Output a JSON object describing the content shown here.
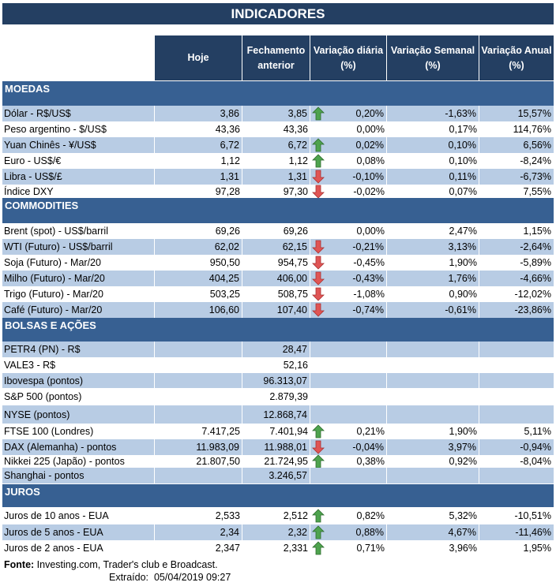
{
  "title": "INDICADORES",
  "columns": [
    "Hoje",
    "Fechamento anterior",
    "Variação diária (%)",
    "Variação Semanal (%)",
    "Variação Anual (%)"
  ],
  "colors": {
    "header": "#243F62",
    "section": "#376092",
    "row_shaded": "#B8CCE4",
    "arrow_up": "#4EA34E",
    "arrow_down": "#E05555"
  },
  "sections": [
    {
      "name": "MOEDAS",
      "rows": [
        {
          "label": "Dólar - R$/US$",
          "hoje": "3,86",
          "fech": "3,85",
          "arrow": "arrow-up",
          "dia": "0,20%",
          "sem": "-1,63%",
          "ano": "15,57%"
        },
        {
          "label": "Peso argentino - $/US$",
          "hoje": "43,36",
          "fech": "43,36",
          "arrow": null,
          "dia": "0,00%",
          "sem": "0,17%",
          "ano": "114,76%"
        },
        {
          "label": "Yuan Chinês - ¥/US$",
          "hoje": "6,72",
          "fech": "6,72",
          "arrow": "arrow-up",
          "dia": "0,02%",
          "sem": "0,10%",
          "ano": "6,56%"
        },
        {
          "label": "Euro - US$/€",
          "hoje": "1,12",
          "fech": "1,12",
          "arrow": "arrow-up",
          "dia": "0,08%",
          "sem": "0,10%",
          "ano": "-8,24%"
        },
        {
          "label": "Libra - US$/£",
          "hoje": "1,31",
          "fech": "1,31",
          "arrow": "arrow-down",
          "dia": "-0,10%",
          "sem": "0,11%",
          "ano": "-6,73%"
        },
        {
          "label": "Índice DXY",
          "hoje": "97,28",
          "fech": "97,30",
          "arrow": "arrow-down",
          "dia": "-0,02%",
          "sem": "0,07%",
          "ano": "7,55%"
        }
      ]
    },
    {
      "name": "COMMODITIES",
      "rows": [
        {
          "label": "Brent (spot) - US$/barril",
          "hoje": "69,26",
          "fech": "69,26",
          "arrow": null,
          "dia": "0,00%",
          "sem": "2,47%",
          "ano": "1,15%"
        },
        {
          "label": "WTI (Futuro) - US$/barril",
          "hoje": "62,02",
          "fech": "62,15",
          "arrow": "arrow-down",
          "dia": "-0,21%",
          "sem": "3,13%",
          "ano": "-2,64%"
        },
        {
          "label": "Soja (Futuro) - Mar/20",
          "hoje": "950,50",
          "fech": "954,75",
          "arrow": "arrow-down",
          "dia": "-0,45%",
          "sem": "1,90%",
          "ano": "-5,89%"
        },
        {
          "label": "Milho (Futuro) - Mar/20",
          "hoje": "404,25",
          "fech": "406,00",
          "arrow": "arrow-down",
          "dia": "-0,43%",
          "sem": "1,76%",
          "ano": "-4,66%"
        },
        {
          "label": "Trigo (Futuro) - Mar/20",
          "hoje": "503,25",
          "fech": "508,75",
          "arrow": "arrow-down",
          "dia": "-1,08%",
          "sem": "0,90%",
          "ano": "-12,02%"
        },
        {
          "label": "Café (Futuro) - Mar/20",
          "hoje": "106,60",
          "fech": "107,40",
          "arrow": "arrow-down",
          "dia": "-0,74%",
          "sem": "-0,61%",
          "ano": "-23,86%"
        }
      ]
    },
    {
      "name": "BOLSAS E AÇÕES",
      "rows": [
        {
          "label": "PETR4 (PN) - R$",
          "hoje": "",
          "fech": "28,47",
          "arrow": null,
          "dia": "",
          "sem": "",
          "ano": ""
        },
        {
          "label": "VALE3 - R$",
          "hoje": "",
          "fech": "52,16",
          "arrow": null,
          "dia": "",
          "sem": "",
          "ano": ""
        },
        {
          "label": "Ibovespa (pontos)",
          "hoje": "",
          "fech": "96.313,07",
          "arrow": null,
          "dia": "",
          "sem": "",
          "ano": ""
        },
        {
          "label": "S&P 500 (pontos)",
          "hoje": "",
          "fech": "2.879,39",
          "arrow": null,
          "dia": "",
          "sem": "",
          "ano": ""
        },
        {
          "label": "NYSE (pontos)",
          "hoje": "",
          "fech": "12.868,74",
          "arrow": null,
          "dia": "",
          "sem": "",
          "ano": ""
        },
        {
          "label": "FTSE 100 (Londres)",
          "hoje": "7.417,25",
          "fech": "7.401,94",
          "arrow": "arrow-up",
          "dia": "0,21%",
          "sem": "1,90%",
          "ano": "5,11%"
        },
        {
          "label": "DAX (Alemanha) - pontos",
          "hoje": "11.983,09",
          "fech": "11.988,01",
          "arrow": "arrow-down",
          "dia": "-0,04%",
          "sem": "3,97%",
          "ano": "-0,94%"
        },
        {
          "label": "Nikkei 225 (Japão) - pontos",
          "hoje": "21.807,50",
          "fech": "21.724,95",
          "arrow": "arrow-up",
          "dia": "0,38%",
          "sem": "0,92%",
          "ano": "-8,04%"
        },
        {
          "label": "Shanghai - pontos",
          "hoje": "",
          "fech": "3.246,57",
          "arrow": null,
          "dia": "",
          "sem": "",
          "ano": ""
        }
      ]
    },
    {
      "name": "JUROS",
      "rows": [
        {
          "label": "Juros de 10 anos - EUA",
          "hoje": "2,533",
          "fech": "2,512",
          "arrow": "arrow-up",
          "dia": "0,82%",
          "sem": "5,32%",
          "ano": "-10,51%"
        },
        {
          "label": "Juros de 5 anos - EUA",
          "hoje": "2,34",
          "fech": "2,32",
          "arrow": "arrow-up",
          "dia": "0,88%",
          "sem": "4,67%",
          "ano": "-11,46%"
        },
        {
          "label": "Juros de 2 anos - EUA",
          "hoje": "2,347",
          "fech": "2,331",
          "arrow": "arrow-up",
          "dia": "0,71%",
          "sem": "3,96%",
          "ano": "1,95%"
        }
      ]
    }
  ],
  "footer": {
    "source_label": "Fonte:",
    "source_text": " Investing.com, Trader's club e Broadcast.",
    "extracted_label": "Extraído:",
    "extracted_value": "05/04/2019 09:27"
  }
}
